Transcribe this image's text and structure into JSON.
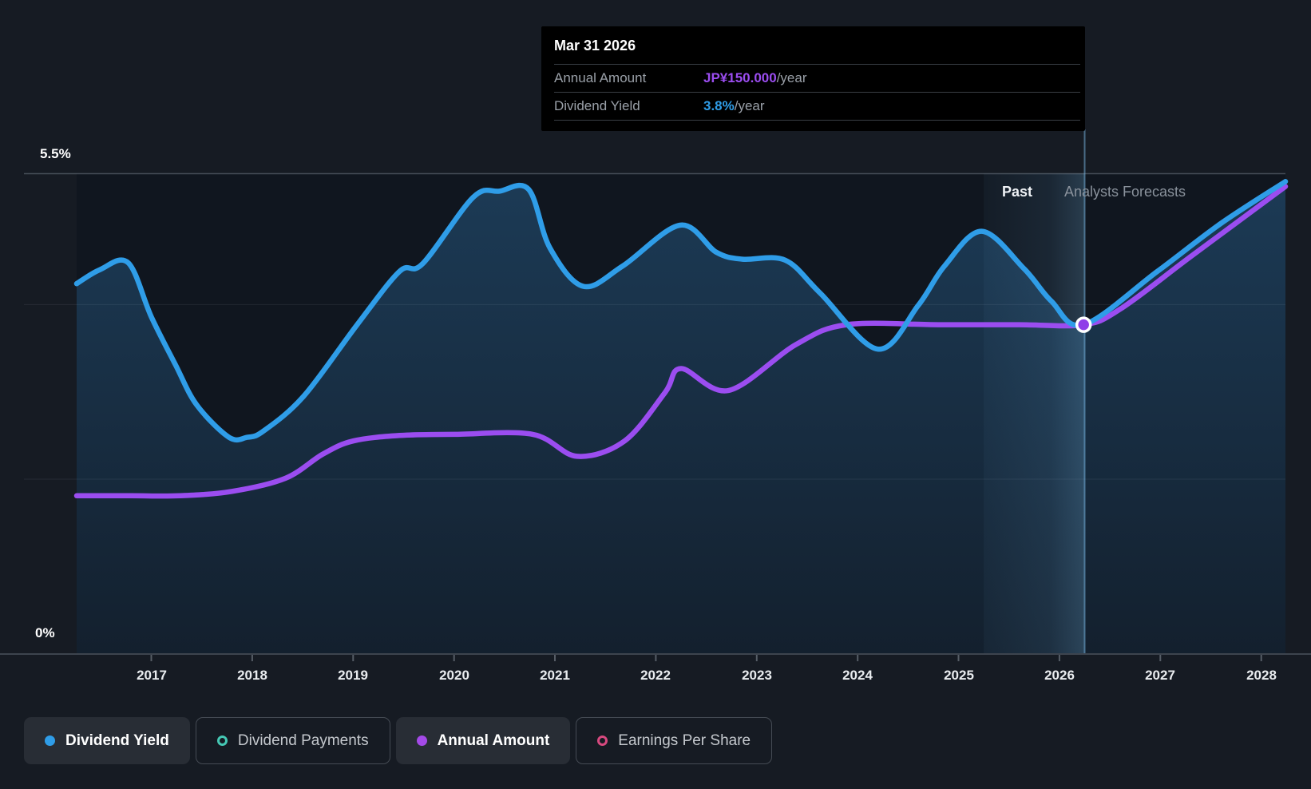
{
  "tooltip": {
    "date": "Mar 31 2026",
    "rows": [
      {
        "label": "Annual Amount",
        "value": "JP¥150.000",
        "suffix": "/year",
        "color": "#9b4df0"
      },
      {
        "label": "Dividend Yield",
        "value": "3.8%",
        "suffix": "/year",
        "color": "#2f9de8"
      }
    ]
  },
  "labels": {
    "y_top": "5.5%",
    "y_bottom": "0%",
    "past": "Past",
    "forecast": "Analysts Forecasts"
  },
  "legend": [
    {
      "label": "Dividend Yield",
      "style": "filled",
      "dot": "filled",
      "color": "#2f9de8"
    },
    {
      "label": "Dividend Payments",
      "style": "outline",
      "dot": "ring",
      "color": "#45c8b4"
    },
    {
      "label": "Annual Amount",
      "style": "filled",
      "dot": "filled",
      "color": "#a44ae8"
    },
    {
      "label": "Earnings Per Share",
      "style": "outline",
      "dot": "ring",
      "color": "#d7497f"
    }
  ],
  "chart_data": {
    "type": "area",
    "title": "Dividend yield and annual dividend amount — history and analyst forecasts",
    "x_ticks": [
      2017,
      2018,
      2019,
      2020,
      2021,
      2022,
      2023,
      2024,
      2025,
      2026,
      2027,
      2028
    ],
    "x_range": [
      2016.26,
      2028.24
    ],
    "y_axis": {
      "unit": "%",
      "min": 0,
      "max_label_value": 5.5,
      "gridlines_pct": [
        2.0,
        4.0,
        5.5
      ],
      "grid": true
    },
    "amount_axis": {
      "unit": "JP¥",
      "note": "JP¥150 plots at the 3.77% level of the percent axis",
      "pct_equiv_of_150": 3.77
    },
    "highlight_band_x": [
      2025.25,
      2026.25
    ],
    "divider_x": 2026.25,
    "legend_position": "bottom-left",
    "series": [
      {
        "name": "Dividend Yield",
        "unit": "%",
        "color": "#2f9de8",
        "fill": "gradient-blue",
        "points": [
          [
            2016.26,
            4.24
          ],
          [
            2016.49,
            4.4
          ],
          [
            2016.77,
            4.48
          ],
          [
            2017.0,
            3.86
          ],
          [
            2017.24,
            3.31
          ],
          [
            2017.45,
            2.85
          ],
          [
            2017.77,
            2.48
          ],
          [
            2017.95,
            2.48
          ],
          [
            2018.11,
            2.55
          ],
          [
            2018.51,
            2.95
          ],
          [
            2019.04,
            3.77
          ],
          [
            2019.46,
            4.38
          ],
          [
            2019.69,
            4.47
          ],
          [
            2020.19,
            5.23
          ],
          [
            2020.45,
            5.3
          ],
          [
            2020.74,
            5.32
          ],
          [
            2020.95,
            4.65
          ],
          [
            2021.28,
            4.21
          ],
          [
            2021.67,
            4.44
          ],
          [
            2022.24,
            4.91
          ],
          [
            2022.6,
            4.6
          ],
          [
            2022.86,
            4.52
          ],
          [
            2023.28,
            4.51
          ],
          [
            2023.63,
            4.13
          ],
          [
            2024.2,
            3.49
          ],
          [
            2024.6,
            3.99
          ],
          [
            2024.86,
            4.44
          ],
          [
            2025.23,
            4.84
          ],
          [
            2025.65,
            4.41
          ],
          [
            2025.92,
            4.04
          ],
          [
            2026.24,
            3.77
          ],
          [
            2026.97,
            4.38
          ],
          [
            2027.6,
            4.93
          ],
          [
            2028.24,
            5.41
          ]
        ]
      },
      {
        "name": "Annual Amount",
        "unit": "JP¥/year",
        "color": "#9b4df0",
        "points": [
          [
            2016.26,
            72
          ],
          [
            2016.8,
            72
          ],
          [
            2017.28,
            72
          ],
          [
            2017.8,
            74
          ],
          [
            2018.33,
            80
          ],
          [
            2018.7,
            91
          ],
          [
            2019.0,
            97
          ],
          [
            2019.46,
            99.5
          ],
          [
            2020.0,
            100
          ],
          [
            2020.78,
            100
          ],
          [
            2021.22,
            90
          ],
          [
            2021.69,
            97
          ],
          [
            2022.09,
            119
          ],
          [
            2022.25,
            130
          ],
          [
            2022.72,
            120
          ],
          [
            2023.39,
            141
          ],
          [
            2023.89,
            150
          ],
          [
            2024.8,
            150
          ],
          [
            2025.6,
            150
          ],
          [
            2026.24,
            150
          ],
          [
            2026.6,
            157
          ],
          [
            2027.3,
            181
          ],
          [
            2028.24,
            213
          ]
        ],
        "marker": {
          "x": 2026.24,
          "value": 150,
          "tooltip_date": "Mar 31 2026"
        }
      }
    ]
  }
}
